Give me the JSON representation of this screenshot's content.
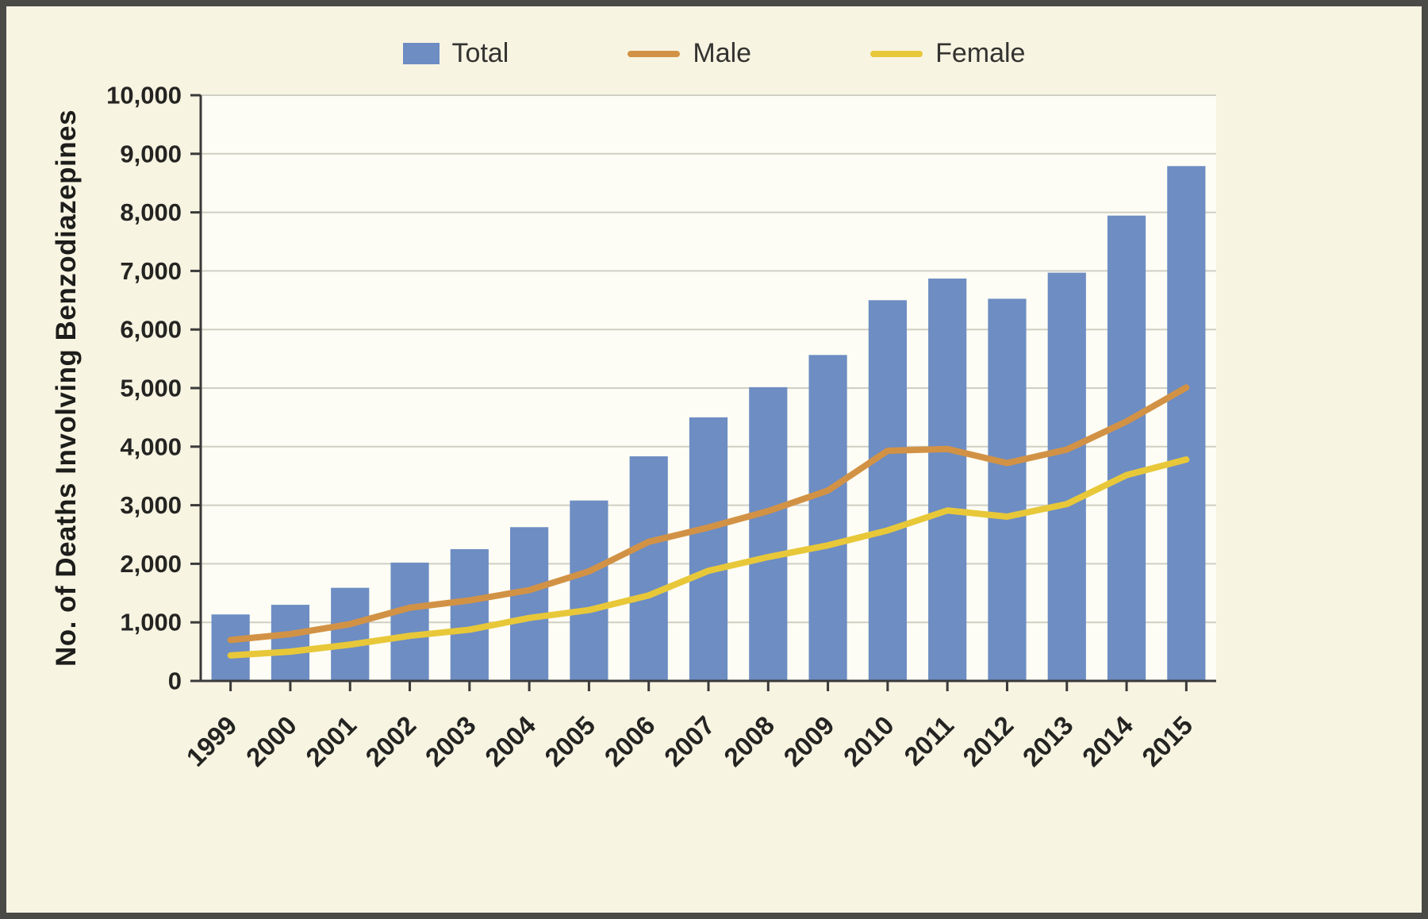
{
  "chart_data": {
    "type": "bar",
    "title": "",
    "xlabel": "",
    "ylabel": "No. of Deaths Involving Benzodiazepines",
    "ylim": [
      0,
      10000
    ],
    "ytick_interval": 1000,
    "ytick_labels": [
      "0",
      "1,000",
      "2,000",
      "3,000",
      "4,000",
      "5,000",
      "6,000",
      "7,000",
      "8,000",
      "9,000",
      "10,000"
    ],
    "categories": [
      "1999",
      "2000",
      "2001",
      "2002",
      "2003",
      "2004",
      "2005",
      "2006",
      "2007",
      "2008",
      "2009",
      "2010",
      "2011",
      "2012",
      "2013",
      "2014",
      "2015"
    ],
    "series": [
      {
        "name": "Total",
        "type": "bar",
        "color": "#6d8dc3",
        "values": [
          1135,
          1300,
          1590,
          2020,
          2250,
          2625,
          3080,
          3835,
          4500,
          5015,
          5565,
          6500,
          6870,
          6525,
          6970,
          7945,
          8790
        ]
      },
      {
        "name": "Male",
        "type": "line",
        "color": "#d29245",
        "values": [
          700,
          800,
          970,
          1250,
          1375,
          1550,
          1870,
          2375,
          2620,
          2900,
          3250,
          3930,
          3960,
          3720,
          3950,
          4430,
          5010
        ]
      },
      {
        "name": "Female",
        "type": "line",
        "color": "#e8c839",
        "values": [
          435,
          500,
          620,
          770,
          875,
          1075,
          1210,
          1460,
          1880,
          2115,
          2315,
          2570,
          2910,
          2805,
          3020,
          3515,
          3780
        ]
      }
    ],
    "legend_position": "top",
    "grid": true,
    "colors": {
      "background": "#f8f4e2",
      "plot_background": "#fdfdf5",
      "border": "#4a4a47",
      "grid": "#cfcfc4",
      "axis": "#3a3a3a",
      "text": "#242422"
    }
  }
}
